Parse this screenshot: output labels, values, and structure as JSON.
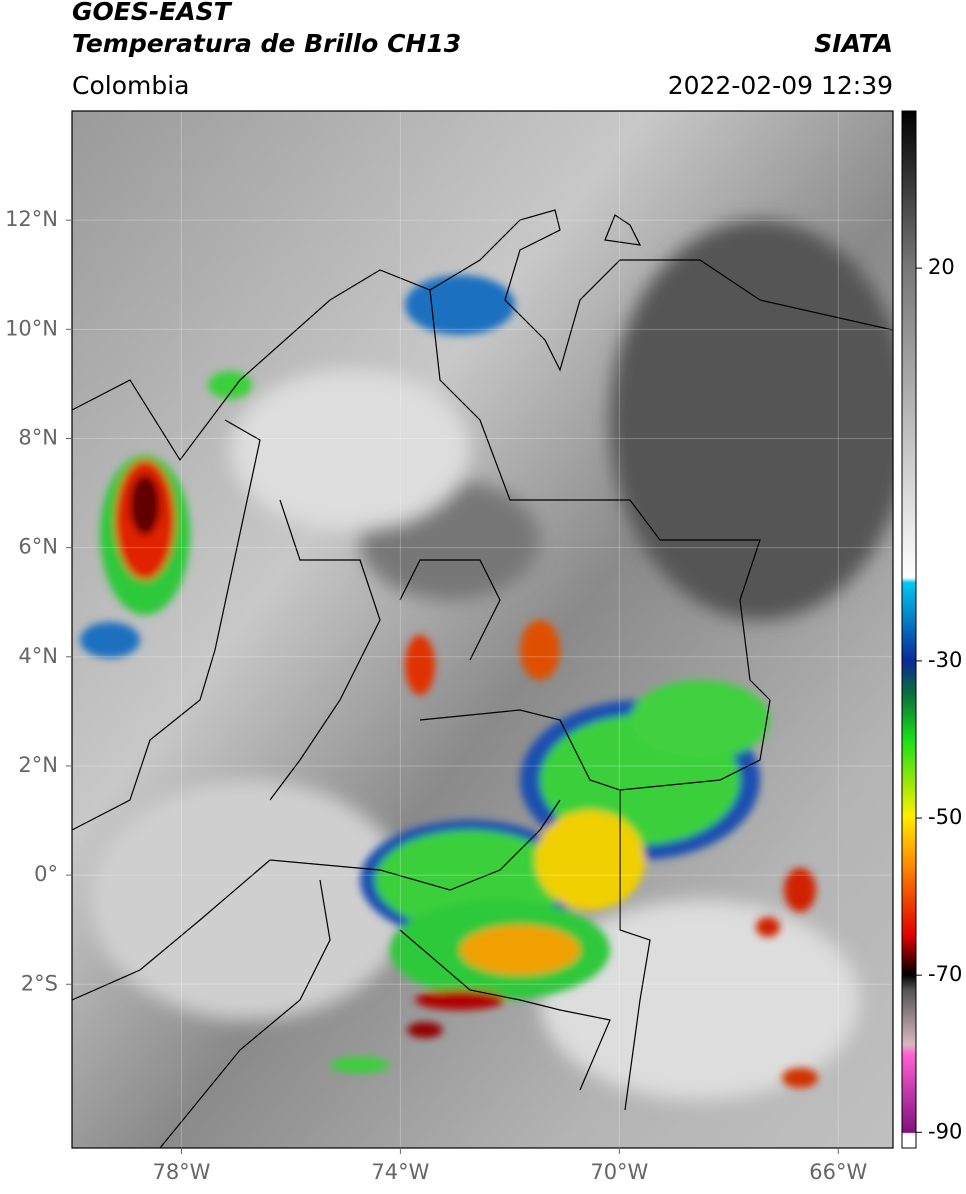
{
  "header": {
    "title": "GOES-EAST",
    "subtitle": "Temperatura de Brillo CH13",
    "source": "SIATA",
    "region": "Colombia",
    "datetime": "2022-02-09 12:39"
  },
  "map": {
    "xlim": [
      -80,
      -65
    ],
    "ylim": [
      -5,
      14
    ],
    "xticks": [
      {
        "value": -78,
        "label": "78°W"
      },
      {
        "value": -74,
        "label": "74°W"
      },
      {
        "value": -70,
        "label": "70°W"
      },
      {
        "value": -66,
        "label": "66°W"
      }
    ],
    "yticks": [
      {
        "value": 12,
        "label": "12°N"
      },
      {
        "value": 10,
        "label": "10°N"
      },
      {
        "value": 8,
        "label": "8°N"
      },
      {
        "value": 6,
        "label": "6°N"
      },
      {
        "value": 4,
        "label": "4°N"
      },
      {
        "value": 2,
        "label": "2°N"
      },
      {
        "value": 0,
        "label": "0°"
      },
      {
        "value": -2,
        "label": "2°S"
      }
    ],
    "grid": true
  },
  "colorbar": {
    "lim": [
      -92,
      40
    ],
    "ticks": [
      20,
      -30,
      -50,
      -70,
      -90
    ]
  }
}
